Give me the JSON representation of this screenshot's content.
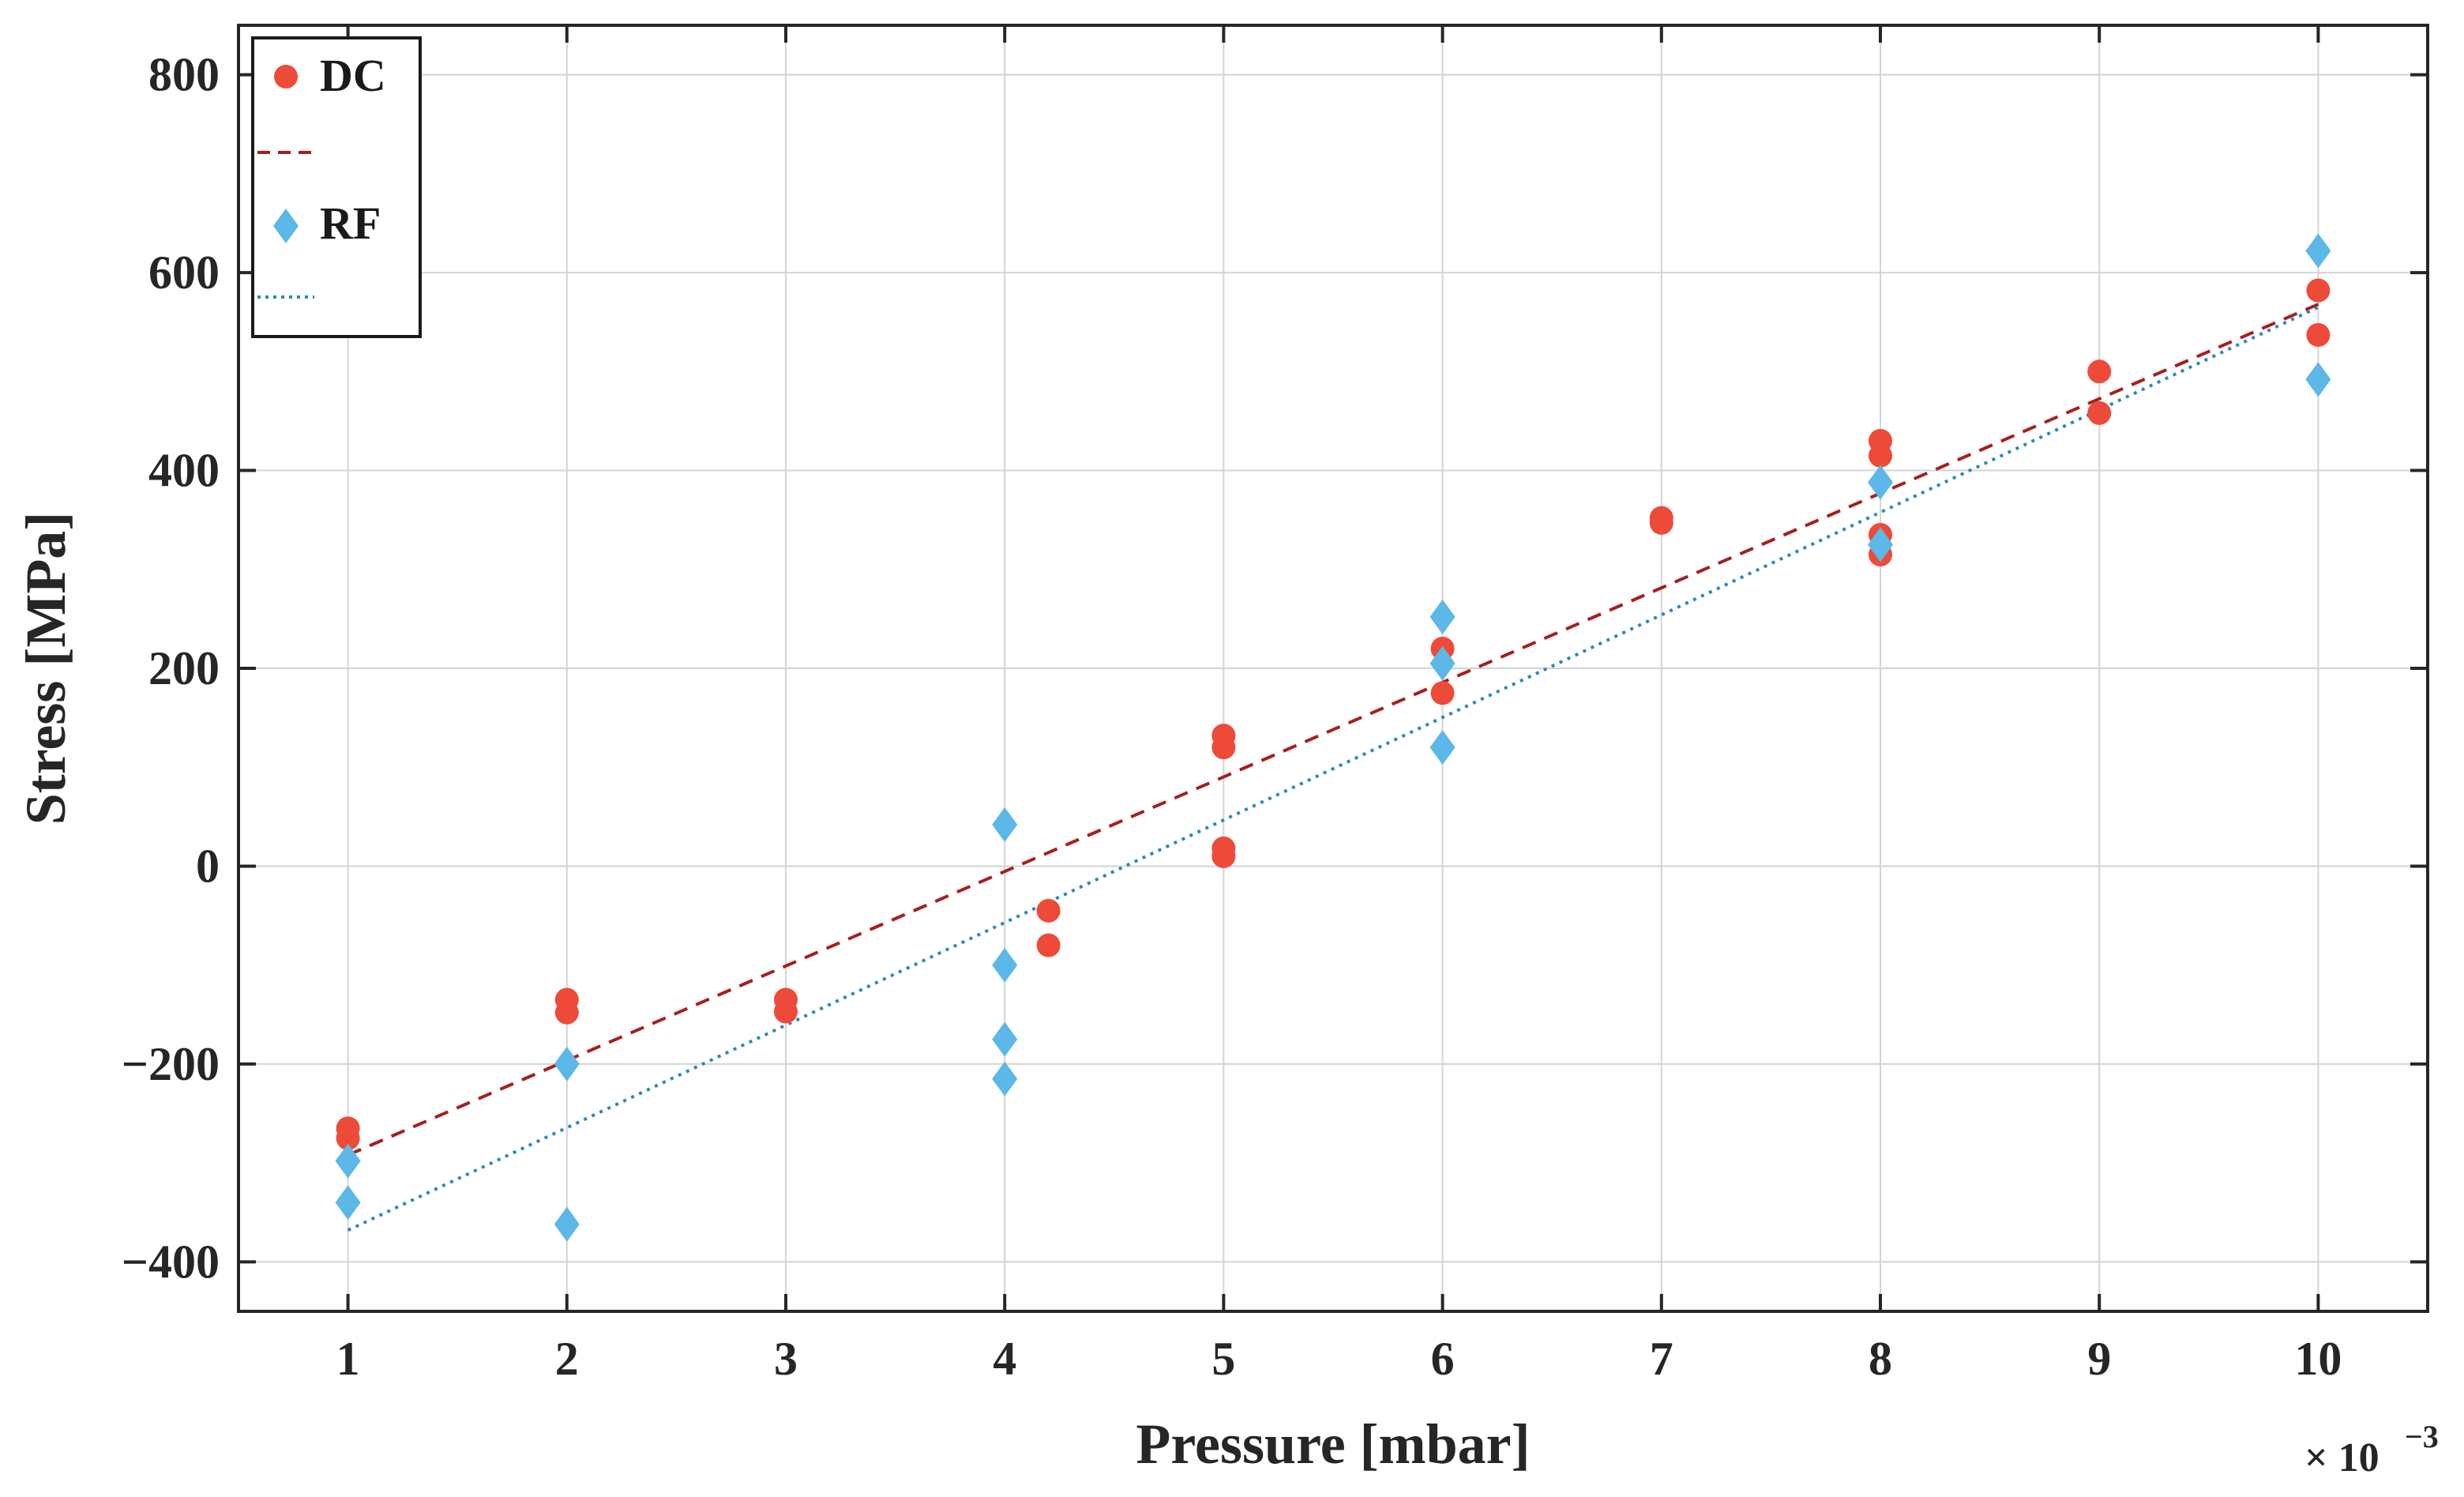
{
  "chart_data": {
    "type": "scatter",
    "title": "",
    "xlabel": "Pressure [mbar]",
    "ylabel": "Stress [MPa]",
    "x_multiplier_label": "× 10",
    "x_multiplier_exponent": "−3",
    "xlim": [
      0.5,
      10.5
    ],
    "ylim": [
      -450,
      850
    ],
    "x_ticks": [
      1,
      2,
      3,
      4,
      5,
      6,
      7,
      8,
      9,
      10
    ],
    "x_tick_labels": [
      "1",
      "2",
      "3",
      "4",
      "5",
      "6",
      "7",
      "8",
      "9",
      "10"
    ],
    "y_ticks": [
      -400,
      -200,
      0,
      200,
      400,
      600,
      800
    ],
    "y_tick_labels": [
      "−400",
      "−200",
      "0",
      "200",
      "400",
      "600",
      "800"
    ],
    "grid": true,
    "legend_position": "top-left",
    "legend": [
      {
        "label": "DC",
        "kind": "marker",
        "series": "DC"
      },
      {
        "label": "",
        "kind": "line",
        "series": "DC-fit"
      },
      {
        "label": "RF",
        "kind": "marker",
        "series": "RF"
      },
      {
        "label": "",
        "kind": "line",
        "series": "RF-fit"
      }
    ],
    "series": [
      {
        "name": "DC",
        "marker": "circle",
        "color": "#ee4a3a",
        "points": [
          [
            1,
            -265
          ],
          [
            1,
            -275
          ],
          [
            2,
            -135
          ],
          [
            2,
            -148
          ],
          [
            3,
            -135
          ],
          [
            3,
            -147
          ],
          [
            4.2,
            -45
          ],
          [
            4.2,
            -80
          ],
          [
            5,
            132
          ],
          [
            5,
            120
          ],
          [
            5,
            18
          ],
          [
            5,
            10
          ],
          [
            6,
            220
          ],
          [
            6,
            175
          ],
          [
            7,
            352
          ],
          [
            7,
            347
          ],
          [
            8,
            430
          ],
          [
            8,
            415
          ],
          [
            8,
            335
          ],
          [
            8,
            315
          ],
          [
            9,
            500
          ],
          [
            9,
            458
          ],
          [
            10,
            582
          ],
          [
            10,
            537
          ]
        ]
      },
      {
        "name": "RF",
        "marker": "diamond",
        "color": "#5bb8e8",
        "points": [
          [
            1,
            -298
          ],
          [
            1,
            -340
          ],
          [
            2,
            -200
          ],
          [
            2,
            -362
          ],
          [
            4,
            42
          ],
          [
            4,
            -100
          ],
          [
            4,
            -175
          ],
          [
            4,
            -215
          ],
          [
            6,
            252
          ],
          [
            6,
            205
          ],
          [
            6,
            120
          ],
          [
            8,
            388
          ],
          [
            8,
            325
          ],
          [
            10,
            622
          ],
          [
            10,
            492
          ]
        ]
      }
    ],
    "fit_lines": [
      {
        "name": "DC-fit",
        "style": "dashed",
        "color": "#a81e1e",
        "from": [
          1,
          -292
        ],
        "to": [
          10,
          568
        ]
      },
      {
        "name": "RF-fit",
        "style": "dotted",
        "color": "#2a8ab8",
        "from": [
          1,
          -368
        ],
        "to": [
          10,
          565
        ]
      }
    ]
  }
}
